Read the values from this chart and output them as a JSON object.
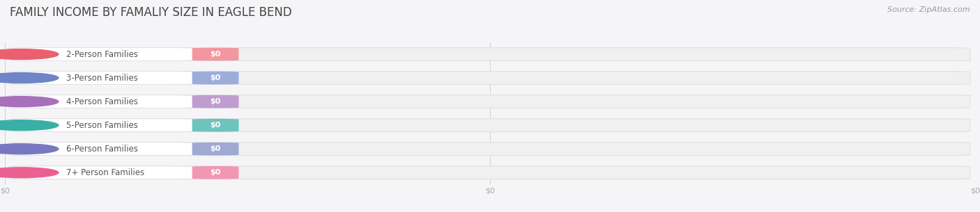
{
  "title": "FAMILY INCOME BY FAMALIY SIZE IN EAGLE BEND",
  "source": "Source: ZipAtlas.com",
  "categories": [
    "2-Person Families",
    "3-Person Families",
    "4-Person Families",
    "5-Person Families",
    "6-Person Families",
    "7+ Person Families"
  ],
  "values": [
    0,
    0,
    0,
    0,
    0,
    0
  ],
  "value_labels": [
    "$0",
    "$0",
    "$0",
    "$0",
    "$0",
    "$0"
  ],
  "bar_colors": [
    "#f2979f",
    "#9badd8",
    "#bf9dd0",
    "#6dc4bc",
    "#9fa9d4",
    "#f297b2"
  ],
  "circle_colors": [
    "#eb6070",
    "#7085c5",
    "#a870bb",
    "#3aafa5",
    "#7878c0",
    "#eb6090"
  ],
  "bg_color": "#f5f5f8",
  "bar_bg_color": "#f0f0f0",
  "bar_bg_edge_color": "#e0e0e0",
  "title_color": "#444444",
  "label_color": "#555555",
  "value_text_color": "#ffffff",
  "axis_tick_color": "#aaaaaa",
  "title_fontsize": 12,
  "label_fontsize": 8.5,
  "value_fontsize": 8,
  "source_fontsize": 8
}
